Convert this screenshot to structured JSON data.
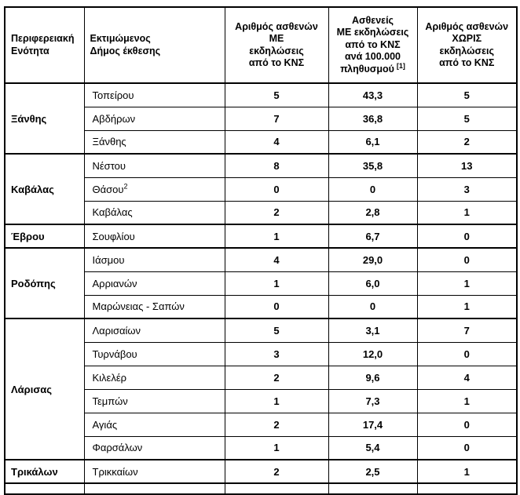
{
  "table": {
    "columns": [
      {
        "label": "Περιφερειακή\nΕνότητα"
      },
      {
        "label": "Εκτιμώμενος\nΔήμος έκθεσης"
      },
      {
        "label": "Αριθμός ασθενών\nΜΕ\nεκδηλώσεις\nαπό το ΚΝΣ"
      },
      {
        "label": "Ασθενείς\nΜΕ εκδηλώσεις\nαπό το ΚΝΣ\nανά 100.000\nπληθυσμού",
        "sup": "[1]"
      },
      {
        "label": "Αριθμός ασθενών\nΧΩΡΙΣ\nεκδηλώσεις\nαπό το ΚΝΣ"
      }
    ],
    "groups": [
      {
        "region": "Ξάνθης",
        "rows": [
          {
            "municipality": "Τοπείρου",
            "with_cns": "5",
            "per_100k": "43,3",
            "without_cns": "5"
          },
          {
            "municipality": "Αβδήρων",
            "with_cns": "7",
            "per_100k": "36,8",
            "without_cns": "5"
          },
          {
            "municipality": "Ξάνθης",
            "with_cns": "4",
            "per_100k": "6,1",
            "without_cns": "2"
          }
        ]
      },
      {
        "region": "Καβάλας",
        "rows": [
          {
            "municipality": "Νέστου",
            "with_cns": "8",
            "per_100k": "35,8",
            "without_cns": "13"
          },
          {
            "municipality": "Θάσου",
            "municipality_sup": "2",
            "with_cns": "0",
            "per_100k": "0",
            "without_cns": "3"
          },
          {
            "municipality": "Καβάλας",
            "with_cns": "2",
            "per_100k": "2,8",
            "without_cns": "1"
          }
        ]
      },
      {
        "region": "Έβρου",
        "rows": [
          {
            "municipality": "Σουφλίου",
            "with_cns": "1",
            "per_100k": "6,7",
            "without_cns": "0"
          }
        ]
      },
      {
        "region": "Ροδόπης",
        "rows": [
          {
            "municipality": "Ιάσμου",
            "with_cns": "4",
            "per_100k": "29,0",
            "without_cns": "0"
          },
          {
            "municipality": "Αρριανών",
            "with_cns": "1",
            "per_100k": "6,0",
            "without_cns": "1"
          },
          {
            "municipality": "Μαρώνειας - Σαπών",
            "with_cns": "0",
            "per_100k": "0",
            "without_cns": "1"
          }
        ]
      },
      {
        "region": "Λάρισας",
        "rows": [
          {
            "municipality": "Λαρισαίων",
            "with_cns": "5",
            "per_100k": "3,1",
            "without_cns": "7"
          },
          {
            "municipality": "Τυρνάβου",
            "with_cns": "3",
            "per_100k": "12,0",
            "without_cns": "0"
          },
          {
            "municipality": "Κιλελέρ",
            "with_cns": "2",
            "per_100k": "9,6",
            "without_cns": "4"
          },
          {
            "municipality": "Τεμπών",
            "with_cns": "1",
            "per_100k": "7,3",
            "without_cns": "1"
          },
          {
            "municipality": "Αγιάς",
            "with_cns": "2",
            "per_100k": "17,4",
            "without_cns": "0"
          },
          {
            "municipality": "Φαρσάλων",
            "with_cns": "1",
            "per_100k": "5,4",
            "without_cns": "0"
          }
        ]
      },
      {
        "region": "Τρικάλων",
        "rows": [
          {
            "municipality": "Τρικκαίων",
            "with_cns": "2",
            "per_100k": "2,5",
            "without_cns": "1"
          }
        ]
      }
    ],
    "partial_row": true
  }
}
